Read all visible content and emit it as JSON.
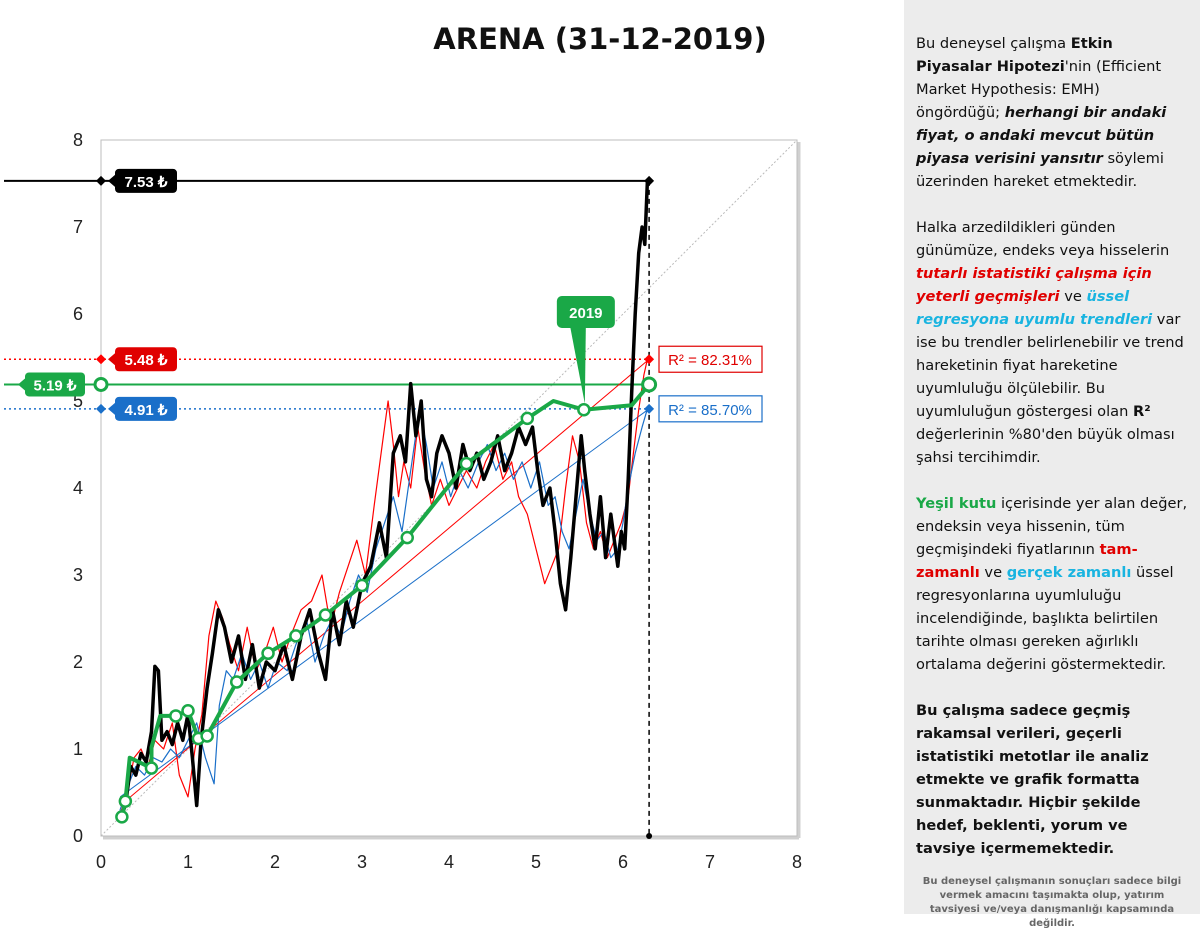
{
  "title": "ARENA (31-12-2019)",
  "colors": {
    "price": "#000000",
    "red_series": "#ff0000",
    "blue_series": "#1a6fc9",
    "green_series": "#1aa847",
    "panel_bg": "#ececec"
  },
  "chart_data": {
    "type": "line",
    "xlim": [
      0,
      8
    ],
    "ylim": [
      0,
      8
    ],
    "x_ticks": [
      "0",
      "1",
      "2",
      "3",
      "4",
      "5",
      "6",
      "7",
      "8"
    ],
    "y_ticks": [
      "0",
      "1",
      "2",
      "3",
      "4",
      "5",
      "6",
      "7",
      "8"
    ],
    "grid": false,
    "diagonal_reference": true,
    "series": [
      {
        "key": "price",
        "color": "#000000",
        "points": [
          [
            0.22,
            0.2
          ],
          [
            0.28,
            0.35
          ],
          [
            0.34,
            0.8
          ],
          [
            0.4,
            0.7
          ],
          [
            0.46,
            0.95
          ],
          [
            0.52,
            0.85
          ],
          [
            0.58,
            1.2
          ],
          [
            0.62,
            1.95
          ],
          [
            0.66,
            1.9
          ],
          [
            0.7,
            1.1
          ],
          [
            0.76,
            1.2
          ],
          [
            0.82,
            1.05
          ],
          [
            0.88,
            1.3
          ],
          [
            0.94,
            1.1
          ],
          [
            1.0,
            1.4
          ],
          [
            1.05,
            0.9
          ],
          [
            1.1,
            0.35
          ],
          [
            1.15,
            1.1
          ],
          [
            1.22,
            1.7
          ],
          [
            1.28,
            2.1
          ],
          [
            1.35,
            2.6
          ],
          [
            1.42,
            2.4
          ],
          [
            1.5,
            2.0
          ],
          [
            1.58,
            2.3
          ],
          [
            1.66,
            1.8
          ],
          [
            1.74,
            2.2
          ],
          [
            1.82,
            1.7
          ],
          [
            1.9,
            2.0
          ],
          [
            2.0,
            1.9
          ],
          [
            2.1,
            2.2
          ],
          [
            2.2,
            1.8
          ],
          [
            2.3,
            2.3
          ],
          [
            2.4,
            2.6
          ],
          [
            2.5,
            2.1
          ],
          [
            2.58,
            1.8
          ],
          [
            2.66,
            2.6
          ],
          [
            2.74,
            2.2
          ],
          [
            2.82,
            2.7
          ],
          [
            2.9,
            2.4
          ],
          [
            3.0,
            2.9
          ],
          [
            3.1,
            3.1
          ],
          [
            3.2,
            3.6
          ],
          [
            3.28,
            3.2
          ],
          [
            3.36,
            4.4
          ],
          [
            3.44,
            4.6
          ],
          [
            3.5,
            4.3
          ],
          [
            3.56,
            5.2
          ],
          [
            3.62,
            4.6
          ],
          [
            3.68,
            5.0
          ],
          [
            3.74,
            4.1
          ],
          [
            3.8,
            3.9
          ],
          [
            3.86,
            4.4
          ],
          [
            3.92,
            4.6
          ],
          [
            4.0,
            4.4
          ],
          [
            4.08,
            4.0
          ],
          [
            4.16,
            4.5
          ],
          [
            4.24,
            4.2
          ],
          [
            4.32,
            4.4
          ],
          [
            4.4,
            4.1
          ],
          [
            4.48,
            4.3
          ],
          [
            4.56,
            4.6
          ],
          [
            4.64,
            4.2
          ],
          [
            4.72,
            4.4
          ],
          [
            4.8,
            4.7
          ],
          [
            4.88,
            4.5
          ],
          [
            4.96,
            4.7
          ],
          [
            5.02,
            4.2
          ],
          [
            5.08,
            3.8
          ],
          [
            5.16,
            4.0
          ],
          [
            5.22,
            3.5
          ],
          [
            5.28,
            2.9
          ],
          [
            5.34,
            2.6
          ],
          [
            5.4,
            3.2
          ],
          [
            5.46,
            3.9
          ],
          [
            5.52,
            4.6
          ],
          [
            5.56,
            4.2
          ],
          [
            5.62,
            3.7
          ],
          [
            5.68,
            3.3
          ],
          [
            5.74,
            3.9
          ],
          [
            5.8,
            3.2
          ],
          [
            5.86,
            3.7
          ],
          [
            5.9,
            3.4
          ],
          [
            5.94,
            3.1
          ],
          [
            5.98,
            3.5
          ],
          [
            6.02,
            3.3
          ],
          [
            6.06,
            4.1
          ],
          [
            6.1,
            5.1
          ],
          [
            6.14,
            6.0
          ],
          [
            6.18,
            6.7
          ],
          [
            6.22,
            7.0
          ],
          [
            6.25,
            6.8
          ],
          [
            6.28,
            7.53
          ]
        ]
      },
      {
        "key": "red",
        "color": "#ff0000",
        "points": [
          [
            0.22,
            0.25
          ],
          [
            0.3,
            0.5
          ],
          [
            0.38,
            0.9
          ],
          [
            0.46,
            1.0
          ],
          [
            0.54,
            0.8
          ],
          [
            0.62,
            1.1
          ],
          [
            0.72,
            1.0
          ],
          [
            0.82,
            1.3
          ],
          [
            0.9,
            0.7
          ],
          [
            1.0,
            0.45
          ],
          [
            1.08,
            1.0
          ],
          [
            1.16,
            1.4
          ],
          [
            1.24,
            2.3
          ],
          [
            1.32,
            2.7
          ],
          [
            1.4,
            2.5
          ],
          [
            1.48,
            2.2
          ],
          [
            1.58,
            1.9
          ],
          [
            1.68,
            2.4
          ],
          [
            1.78,
            1.9
          ],
          [
            1.88,
            2.1
          ],
          [
            1.98,
            2.4
          ],
          [
            2.08,
            2.0
          ],
          [
            2.18,
            2.3
          ],
          [
            2.3,
            2.6
          ],
          [
            2.42,
            2.7
          ],
          [
            2.54,
            3.0
          ],
          [
            2.64,
            2.4
          ],
          [
            2.74,
            2.8
          ],
          [
            2.84,
            3.1
          ],
          [
            2.94,
            3.4
          ],
          [
            3.04,
            3.0
          ],
          [
            3.14,
            3.8
          ],
          [
            3.22,
            4.4
          ],
          [
            3.3,
            5.0
          ],
          [
            3.36,
            4.5
          ],
          [
            3.42,
            3.9
          ],
          [
            3.48,
            4.3
          ],
          [
            3.56,
            4.0
          ],
          [
            3.64,
            4.7
          ],
          [
            3.72,
            4.2
          ],
          [
            3.8,
            3.8
          ],
          [
            3.9,
            4.1
          ],
          [
            4.0,
            3.8
          ],
          [
            4.1,
            4.0
          ],
          [
            4.2,
            4.2
          ],
          [
            4.32,
            4.0
          ],
          [
            4.42,
            4.3
          ],
          [
            4.52,
            4.5
          ],
          [
            4.62,
            4.1
          ],
          [
            4.72,
            4.3
          ],
          [
            4.8,
            3.9
          ],
          [
            4.9,
            3.7
          ],
          [
            5.0,
            3.3
          ],
          [
            5.1,
            2.9
          ],
          [
            5.18,
            3.1
          ],
          [
            5.26,
            3.3
          ],
          [
            5.34,
            4.0
          ],
          [
            5.42,
            4.6
          ],
          [
            5.5,
            4.3
          ],
          [
            5.58,
            3.6
          ],
          [
            5.66,
            3.3
          ],
          [
            5.74,
            3.5
          ],
          [
            5.82,
            3.2
          ],
          [
            5.9,
            3.4
          ],
          [
            5.98,
            3.6
          ],
          [
            6.06,
            3.9
          ],
          [
            6.12,
            4.4
          ],
          [
            6.18,
            4.9
          ],
          [
            6.24,
            5.3
          ],
          [
            6.28,
            5.48
          ]
        ]
      },
      {
        "key": "blue",
        "color": "#1a6fc9",
        "points": [
          [
            0.22,
            0.3
          ],
          [
            0.3,
            0.55
          ],
          [
            0.4,
            0.8
          ],
          [
            0.5,
            0.7
          ],
          [
            0.6,
            0.9
          ],
          [
            0.7,
            0.85
          ],
          [
            0.8,
            1.0
          ],
          [
            0.9,
            0.9
          ],
          [
            1.0,
            1.1
          ],
          [
            1.1,
            1.3
          ],
          [
            1.2,
            0.9
          ],
          [
            1.3,
            0.6
          ],
          [
            1.36,
            1.5
          ],
          [
            1.44,
            1.9
          ],
          [
            1.52,
            1.8
          ],
          [
            1.62,
            2.1
          ],
          [
            1.72,
            1.8
          ],
          [
            1.82,
            2.0
          ],
          [
            1.92,
            1.7
          ],
          [
            2.02,
            2.0
          ],
          [
            2.14,
            1.9
          ],
          [
            2.24,
            2.2
          ],
          [
            2.36,
            2.5
          ],
          [
            2.46,
            2.0
          ],
          [
            2.56,
            2.3
          ],
          [
            2.66,
            2.5
          ],
          [
            2.76,
            2.3
          ],
          [
            2.86,
            2.7
          ],
          [
            2.96,
            3.0
          ],
          [
            3.06,
            2.8
          ],
          [
            3.16,
            3.3
          ],
          [
            3.26,
            3.6
          ],
          [
            3.36,
            3.9
          ],
          [
            3.46,
            3.5
          ],
          [
            3.56,
            4.2
          ],
          [
            3.66,
            4.9
          ],
          [
            3.74,
            4.5
          ],
          [
            3.82,
            4.0
          ],
          [
            3.92,
            4.3
          ],
          [
            4.02,
            3.9
          ],
          [
            4.12,
            4.2
          ],
          [
            4.22,
            4.0
          ],
          [
            4.34,
            4.3
          ],
          [
            4.44,
            4.5
          ],
          [
            4.54,
            4.2
          ],
          [
            4.64,
            4.4
          ],
          [
            4.74,
            4.1
          ],
          [
            4.84,
            4.3
          ],
          [
            4.94,
            4.0
          ],
          [
            5.04,
            4.3
          ],
          [
            5.14,
            3.8
          ],
          [
            5.22,
            3.9
          ],
          [
            5.3,
            3.5
          ],
          [
            5.38,
            3.3
          ],
          [
            5.46,
            3.7
          ],
          [
            5.54,
            4.1
          ],
          [
            5.62,
            3.7
          ],
          [
            5.7,
            3.4
          ],
          [
            5.78,
            3.5
          ],
          [
            5.86,
            3.2
          ],
          [
            5.94,
            3.3
          ],
          [
            6.0,
            3.6
          ],
          [
            6.06,
            4.0
          ],
          [
            6.14,
            4.4
          ],
          [
            6.22,
            4.7
          ],
          [
            6.28,
            4.91
          ]
        ]
      },
      {
        "key": "green",
        "color": "#1aa847",
        "points": [
          [
            0.24,
            0.22
          ],
          [
            0.28,
            0.4
          ],
          [
            0.33,
            0.9
          ],
          [
            0.58,
            0.78
          ],
          [
            0.58,
            1.02
          ],
          [
            0.68,
            1.38
          ],
          [
            0.86,
            1.38
          ],
          [
            1.0,
            1.44
          ],
          [
            1.12,
            1.12
          ],
          [
            1.22,
            1.15
          ],
          [
            1.56,
            1.77
          ],
          [
            1.92,
            2.1
          ],
          [
            2.24,
            2.3
          ],
          [
            2.58,
            2.54
          ],
          [
            3.0,
            2.88
          ],
          [
            3.52,
            3.43
          ],
          [
            4.2,
            4.28
          ],
          [
            4.9,
            4.8
          ],
          [
            5.2,
            5.0
          ],
          [
            5.55,
            4.9
          ],
          [
            6.1,
            4.95
          ],
          [
            6.3,
            5.19
          ]
        ],
        "markers": [
          [
            0.24,
            0.22
          ],
          [
            0.28,
            0.4
          ],
          [
            0.58,
            0.78
          ],
          [
            0.86,
            1.38
          ],
          [
            1.0,
            1.44
          ],
          [
            1.12,
            1.12
          ],
          [
            1.22,
            1.15
          ],
          [
            1.56,
            1.77
          ],
          [
            1.92,
            2.1
          ],
          [
            2.24,
            2.3
          ],
          [
            2.58,
            2.54
          ],
          [
            3.0,
            2.88
          ],
          [
            3.52,
            3.43
          ],
          [
            4.2,
            4.28
          ],
          [
            4.9,
            4.8
          ],
          [
            5.55,
            4.9
          ],
          [
            6.3,
            5.19
          ]
        ]
      }
    ],
    "trendlines": [
      {
        "key": "red",
        "color": "#ff0000",
        "from": [
          0.22,
          0.35
        ],
        "to": [
          6.3,
          5.48
        ]
      },
      {
        "key": "blue",
        "color": "#1a6fc9",
        "from": [
          0.22,
          0.45
        ],
        "to": [
          6.3,
          4.91
        ]
      }
    ],
    "reference_lines": [
      {
        "key": "black",
        "y": 7.53,
        "x_end": 6.3,
        "style": "solid",
        "color": "#000000",
        "label": "7.53 ₺"
      },
      {
        "key": "red",
        "y": 5.48,
        "x_end": 6.3,
        "style": "dotted",
        "color": "#ff0000",
        "label": "5.48 ₺"
      },
      {
        "key": "green",
        "y": 5.19,
        "x_end": 6.3,
        "style": "solid",
        "color": "#1aa847",
        "label": "5.19 ₺"
      },
      {
        "key": "blue",
        "y": 4.91,
        "x_end": 6.3,
        "style": "dotted",
        "color": "#1a6fc9",
        "label": "4.91 ₺"
      }
    ],
    "vertical_line_x": 6.3,
    "r2_labels": [
      {
        "key": "red",
        "text": "R² = 82.31%",
        "color": "#e00000",
        "y": 5.48
      },
      {
        "key": "blue",
        "text": "R² = 85.70%",
        "color": "#1a6fc9",
        "y": 4.91
      }
    ],
    "annotation": {
      "text": "2019",
      "x": 5.55,
      "y": 4.9
    }
  },
  "panel": {
    "p1": {
      "a": "Bu deneysel çalışma ",
      "b": "Etkin Piyasalar Hipotezi",
      "c": "'nin (Efficient Market Hypothesis: EMH) öngördüğü; ",
      "d": "herhangi bir andaki fiyat, o andaki mevcut bütün piyasa verisini yansıtır",
      "e": "  söylemi üzerinden hareket etmektedir."
    },
    "p2": {
      "a": "Halka arzedildikleri günden günümüze, endeks veya hisselerin ",
      "b": "tutarlı istatistiki çalışma için yeterli geçmişleri",
      "c": " ve ",
      "d": "üssel regresyona uyumlu trendleri",
      "e": " var ise bu trendler belirlenebilir  ve trend hareketinin fiyat hareketine uyumluluğu ölçülebilir.  Bu uyumluluğun göstergesi olan ",
      "f": "R²",
      "g": " değerlerinin %80'den büyük olması şahsi tercihimdir."
    },
    "p3": {
      "a": "Yeşil kutu",
      "b": " içerisinde yer alan değer, endeksin veya hissenin, tüm geçmişindeki fiyatlarının ",
      "c": "tam-zamanlı",
      "d": " ve ",
      "e": "gerçek zamanlı",
      "f": " üssel regresyonlarına uyumluluğu incelendiğinde, başlıkta belirtilen tarihte olması gereken ağırlıklı ortalama değerini göstermektedir."
    },
    "p4": "Bu çalışma sadece geçmiş rakamsal verileri, geçerli istatistiki metotlar ile  analiz etmekte ve grafik formatta sunmaktadır. Hiçbir şekilde hedef, beklenti, yorum ve tavsiye içermemektedir.",
    "disclaimer": "Bu deneysel çalışmanın sonuçları sadece bilgi vermek amacını taşımakta olup, yatırım tavsiyesi ve/veya danışmanlığı kapsamında değildir."
  }
}
